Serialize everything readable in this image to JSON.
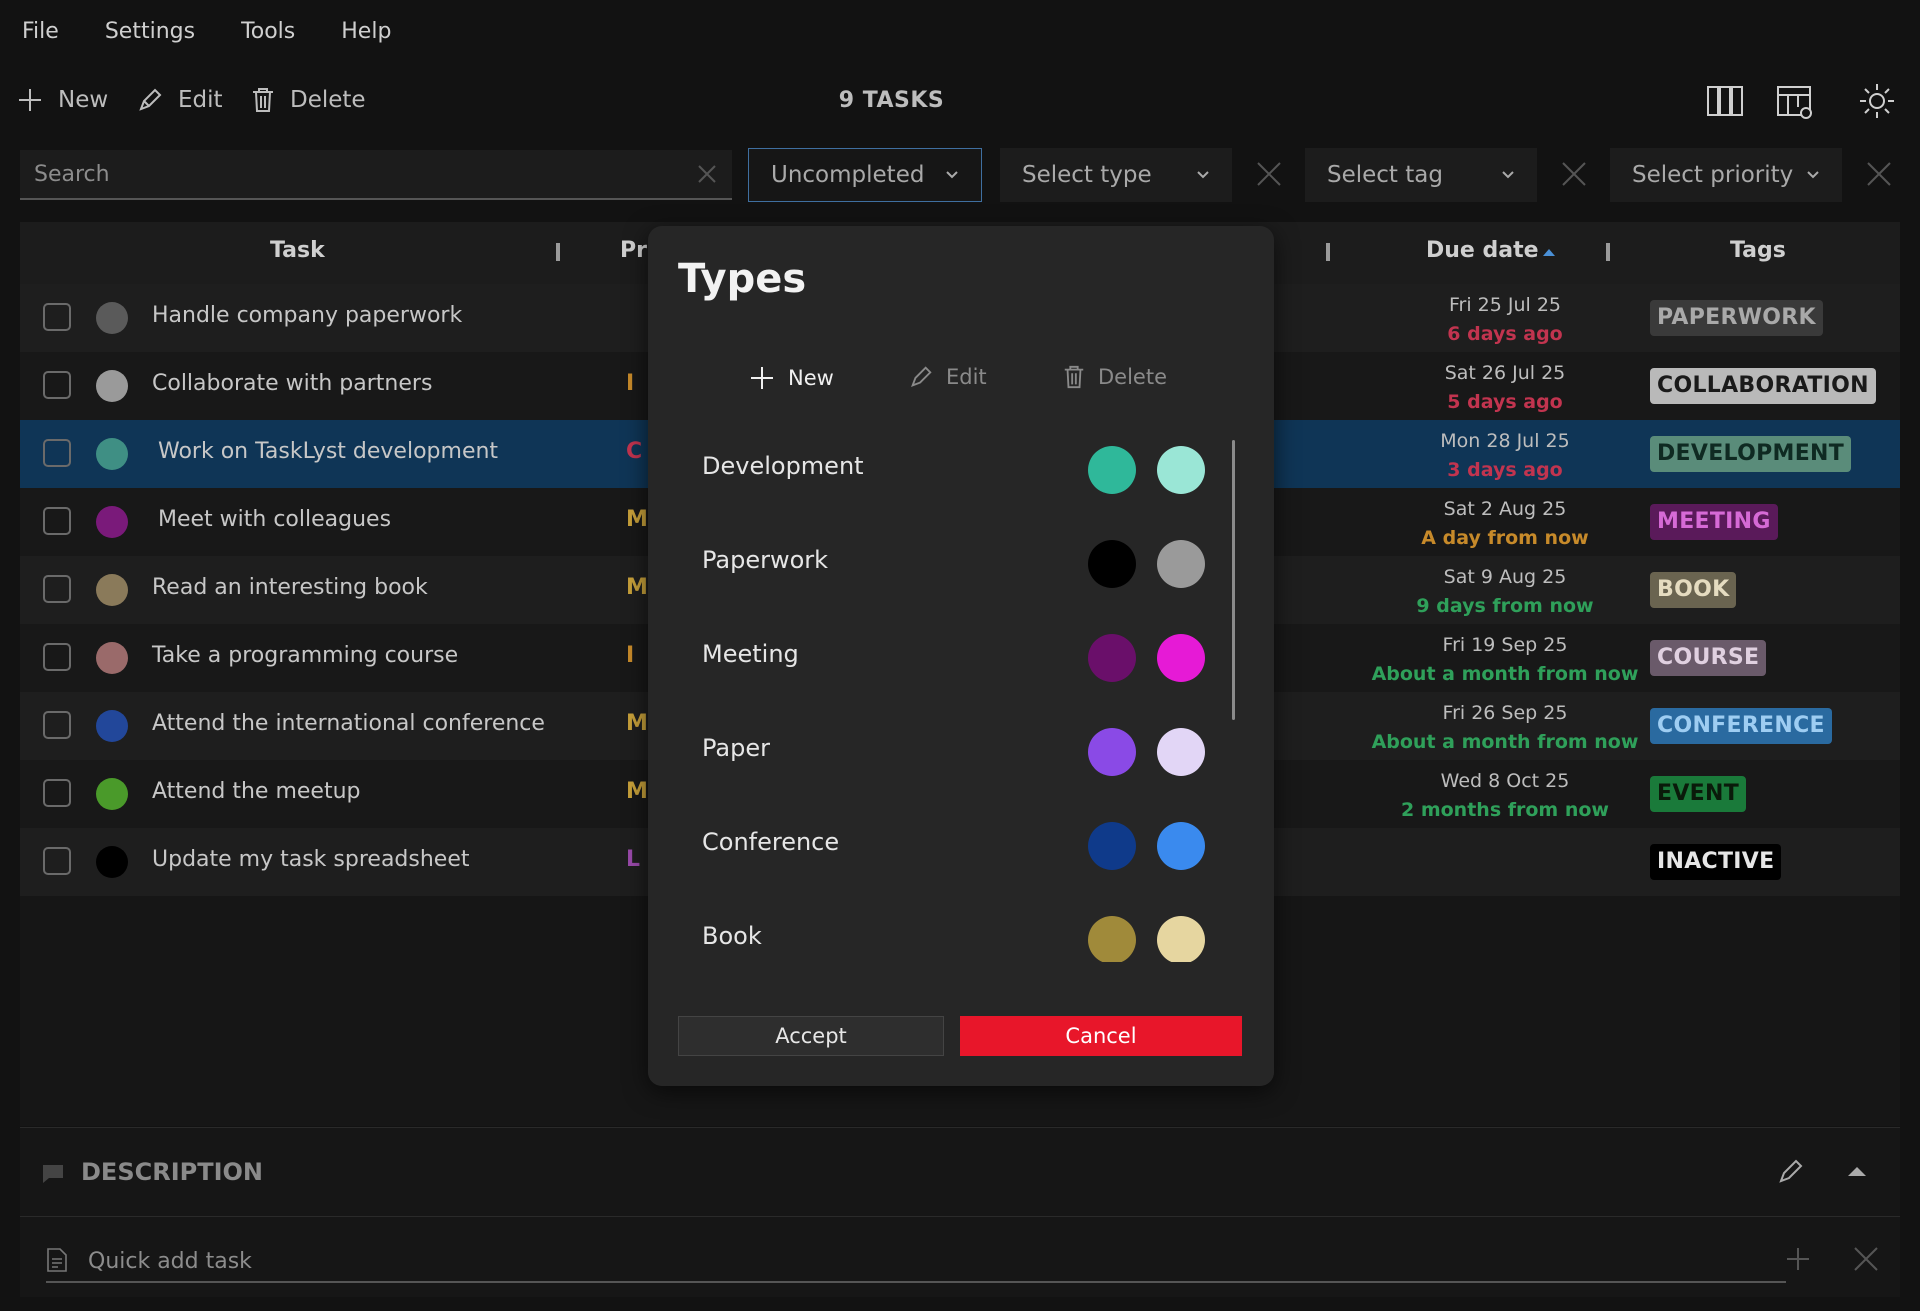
{
  "menu": [
    "File",
    "Settings",
    "Tools",
    "Help"
  ],
  "toolbar": {
    "new": "New",
    "edit": "Edit",
    "delete": "Delete",
    "count": "9 TASKS"
  },
  "filters": {
    "search_placeholder": "Search",
    "status": "Uncompleted",
    "type": "Select type",
    "tag": "Select tag",
    "priority": "Select priority"
  },
  "columns": {
    "task": "Task",
    "priority": "Pri",
    "due": "Due date",
    "tags": "Tags"
  },
  "tasks": [
    {
      "name": "Handle company paperwork",
      "dot": "#5a5a5a",
      "pri": "",
      "pri_color": "#c7a03a",
      "date": "Fri 25 Jul 25",
      "rel": "6 days ago",
      "rel_color": "#c2344f",
      "tag": "PAPERWORK",
      "tag_bg": "#3a3a3a",
      "tag_fg": "#a9a9a9"
    },
    {
      "name": "Collaborate with partners",
      "dot": "#9a9a9a",
      "pri": "I",
      "pri_color": "#c78a2a",
      "date": "Sat 26 Jul 25",
      "rel": "5 days ago",
      "rel_color": "#c2344f",
      "tag": "COLLABORATION",
      "tag_bg": "#b9b9b9",
      "tag_fg": "#1a1a1a"
    },
    {
      "name": "Work on TaskLyst development",
      "dot": "#3f8f84",
      "pri": "C",
      "pri_color": "#c2344f",
      "date": "Mon 28 Jul 25",
      "rel": "3 days ago",
      "rel_color": "#c2344f",
      "tag": "DEVELOPMENT",
      "tag_bg": "#5a8c7a",
      "tag_fg": "#0f2a22"
    },
    {
      "name": "Meet with colleagues",
      "dot": "#7a1a7a",
      "pri": "M",
      "pri_color": "#c7a03a",
      "date": "Sat 2 Aug 25",
      "rel": "A day from now",
      "rel_color": "#c78a2a",
      "tag": "MEETING",
      "tag_bg": "#5a1a5a",
      "tag_fg": "#d66ad6"
    },
    {
      "name": "Read an interesting book",
      "dot": "#8a7a5a",
      "pri": "M",
      "pri_color": "#c7a03a",
      "date": "Sat 9 Aug 25",
      "rel": "9 days from now",
      "rel_color": "#2fa05a",
      "tag": "BOOK",
      "tag_bg": "#6a6450",
      "tag_fg": "#e5dcc0"
    },
    {
      "name": "Take a programming course",
      "dot": "#9a6a6a",
      "pri": "I",
      "pri_color": "#c78a2a",
      "date": "Fri 19 Sep 25",
      "rel": "About a month from now",
      "rel_color": "#2fa05a",
      "tag": "COURSE",
      "tag_bg": "#6a5a6a",
      "tag_fg": "#e0d0e0"
    },
    {
      "name": "Attend the international conference",
      "dot": "#22479a",
      "pri": "M",
      "pri_color": "#c7a03a",
      "date": "Fri 26 Sep 25",
      "rel": "About a month from now",
      "rel_color": "#2fa05a",
      "tag": "CONFERENCE",
      "tag_bg": "#2a6aa0",
      "tag_fg": "#9ecdf2"
    },
    {
      "name": "Attend the meetup",
      "dot": "#4a9a2a",
      "pri": "M",
      "pri_color": "#c7a03a",
      "date": "Wed 8 Oct 25",
      "rel": "2 months from now",
      "rel_color": "#2fa05a",
      "tag": "EVENT",
      "tag_bg": "#1a7a3a",
      "tag_fg": "#0a1a0a"
    },
    {
      "name": "Update my task spreadsheet",
      "dot": "#000000",
      "pri": "L",
      "pri_color": "#9a4aaa",
      "date": "",
      "rel": "",
      "rel_color": "#2fa05a",
      "tag": "INACTIVE",
      "tag_bg": "#000000",
      "tag_fg": "#e6e6e6"
    }
  ],
  "bottom": {
    "description": "DESCRIPTION",
    "quick_add_placeholder": "Quick add task"
  },
  "modal": {
    "title": "Types",
    "new": "New",
    "edit": "Edit",
    "delete": "Delete",
    "types": [
      {
        "name": "Development",
        "c1": "#2fb89a",
        "c2": "#9ae6d6"
      },
      {
        "name": "Paperwork",
        "c1": "#000000",
        "c2": "#9a9a9a"
      },
      {
        "name": "Meeting",
        "c1": "#6a0f6a",
        "c2": "#e61ad6"
      },
      {
        "name": "Paper",
        "c1": "#8a4ae6",
        "c2": "#e2d6f6"
      },
      {
        "name": "Conference",
        "c1": "#0f3a8a",
        "c2": "#3a8aee"
      },
      {
        "name": "Book",
        "c1": "#a08a3a",
        "c2": "#e6d6a0"
      }
    ],
    "accept": "Accept",
    "cancel": "Cancel"
  }
}
